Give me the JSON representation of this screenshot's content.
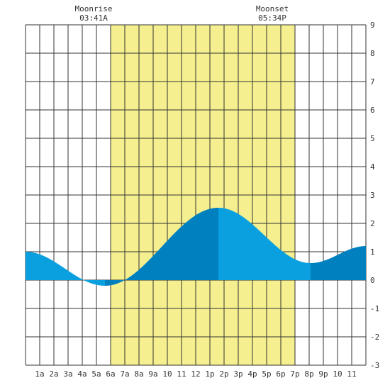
{
  "chart_data": {
    "type": "area",
    "title": "",
    "xlabel": "",
    "ylabel": "",
    "xlim": [
      0,
      24
    ],
    "ylim": [
      -3,
      9
    ],
    "grid": true,
    "x_tick_labels": [
      "1a",
      "2a",
      "3a",
      "4a",
      "5a",
      "6a",
      "7a",
      "8a",
      "9a",
      "10",
      "11",
      "12",
      "1p",
      "2p",
      "3p",
      "4p",
      "5p",
      "6p",
      "7p",
      "8p",
      "9p",
      "10",
      "11"
    ],
    "y_tick_labels": [
      "-3",
      "-2",
      "-1",
      "0",
      "1",
      "2",
      "3",
      "4",
      "5",
      "6",
      "7",
      "8",
      "9"
    ],
    "daylight": {
      "start": 6.0,
      "end": 19.0,
      "color": "#f5ef8f"
    },
    "moon_events": [
      {
        "label": "Moonrise",
        "time": "03:41A",
        "hour": 6.0
      },
      {
        "label": "Moonset",
        "time": "05:34P",
        "hour": 18.6
      }
    ],
    "tide_extrema": [
      {
        "hour": 0.0,
        "height": 1.0
      },
      {
        "hour": 5.6,
        "height": -0.2
      },
      {
        "hour": 13.6,
        "height": 2.55
      },
      {
        "hour": 20.1,
        "height": 0.6
      },
      {
        "hour": 24.0,
        "height": 1.2
      }
    ],
    "series_colors": {
      "light": "#0aa0e0",
      "dark": "#0080bf"
    }
  }
}
